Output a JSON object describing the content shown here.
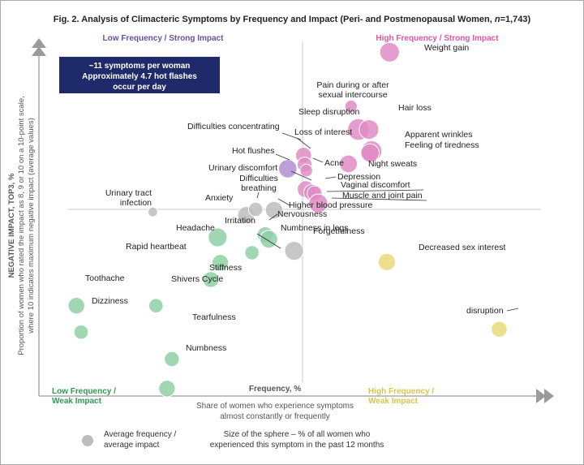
{
  "chart_data": {
    "type": "scatter",
    "title": "Fig. 2. Analysis of Climacteric Symptoms by Frequency and Impact (Peri- and Postmenopausal Women, n=1,743)",
    "title_parts": [
      "Fig. 2. Analysis of Climacteric Symptoms by Frequency and Impact (Peri- and Postmenopausal Women, ",
      "n",
      "=1,743)"
    ],
    "xlabel": "Frequency, %",
    "xlabel_sub": [
      "Share of women who experience symptoms",
      "almost constantly or frequently"
    ],
    "ylabel": "NEGATIVE IMPACT, TOP3, %",
    "ylabel_sub": [
      "Proportion of women who rated the impact as 8, 9 or 10 on a 10-point scale,",
      "where 10 indicates maximum negative impact (average values)"
    ],
    "xlim": [
      0,
      100
    ],
    "ylim": [
      0,
      100
    ],
    "center": [
      50,
      50
    ],
    "quadrants": {
      "top_left": "Low Frequency / Strong Impact",
      "top_right": "High Frequency / Strong Impact",
      "bottom_left": [
        "Low Frequency /",
        "Weak Impact"
      ],
      "bottom_right": [
        "High Frequency /",
        "Weak Impact"
      ]
    },
    "callout": [
      "~11 symptoms per woman",
      "Approximately 4.7 hot flashes",
      "occur per day"
    ],
    "legend": {
      "average": [
        "Average frequency /",
        "average impact"
      ],
      "size": [
        "Size of the sphere – % of all women who",
        "experienced this symptom in the past 12 months"
      ]
    },
    "colors": {
      "pink": "#e08cc4",
      "purple": "#b08fd0",
      "gray": "#bdbdbd",
      "green": "#8fd0a6",
      "yellow": "#e7db7a",
      "axis": "#aaaaaa",
      "title": "#222222",
      "pink_text": "#e0559f",
      "purple_text": "#6a4fa0",
      "green_text": "#2e9b4e",
      "yellow_text": "#d6c64a",
      "callout_bg": "#1f2a6b"
    },
    "series": [
      {
        "name": "Weight gain",
        "x": 66.5,
        "y": 92.1,
        "size": 3.8,
        "color": "pink"
      },
      {
        "name": "Pain during or after sexual intercourse",
        "x": 59.2,
        "y": 77.6,
        "size": 1.5,
        "color": "pink"
      },
      {
        "name": "Sleep disruption",
        "x": 60.6,
        "y": 71.4,
        "size": 4.6,
        "color": "pink"
      },
      {
        "name": "Hair loss",
        "x": 62.6,
        "y": 71.4,
        "size": 3.8,
        "color": "pink"
      },
      {
        "name": "Apparent wrinkles",
        "x": 63.1,
        "y": 65.6,
        "size": 4.2,
        "color": "pink"
      },
      {
        "name": "Feeling of tiredness",
        "x": 62.8,
        "y": 65.1,
        "size": 3.3,
        "color": "pink"
      },
      {
        "name": "Night sweats",
        "x": 58.7,
        "y": 62.2,
        "size": 3.1,
        "color": "pink"
      },
      {
        "name": "Loss of interest",
        "x": 50.2,
        "y": 64.5,
        "size": 2.5,
        "color": "pink"
      },
      {
        "name": "Difficulties concentrating",
        "x": 50.4,
        "y": 62.0,
        "size": 2.2,
        "color": "pink"
      },
      {
        "name": "Hot flushes",
        "x": 47.2,
        "y": 60.9,
        "size": 3.3,
        "color": "purple"
      },
      {
        "name": "Acne",
        "x": 50.7,
        "y": 60.4,
        "size": 1.6,
        "color": "pink"
      },
      {
        "name": "Urinary discomfort",
        "x": 50.6,
        "y": 55.4,
        "size": 2.8,
        "color": "pink"
      },
      {
        "name": "Depression",
        "x": 51.8,
        "y": 54.5,
        "size": 2.7,
        "color": "pink"
      },
      {
        "name": "Vaginal discomfort",
        "x": 52.3,
        "y": 54.3,
        "size": 2.2,
        "color": "pink"
      },
      {
        "name": "Muscle and joint pain",
        "x": 53.0,
        "y": 51.6,
        "size": 3.5,
        "color": "pink"
      },
      {
        "name": "Urinary tract infection",
        "x": 21.6,
        "y": 49.3,
        "size": 0.9,
        "color": "gray"
      },
      {
        "name": "Anxiety",
        "x": 39.3,
        "y": 48.5,
        "size": 2.8,
        "color": "gray"
      },
      {
        "name": "Difficulties breathing",
        "x": 41.1,
        "y": 50.0,
        "size": 2.0,
        "color": "gray"
      },
      {
        "name": "Higher blood pressure",
        "x": 44.6,
        "y": 49.8,
        "size": 3.0,
        "color": "gray"
      },
      {
        "name": "Headache",
        "x": 33.9,
        "y": 42.5,
        "size": 3.5,
        "color": "green"
      },
      {
        "name": "Irritation",
        "x": 42.9,
        "y": 43.2,
        "size": 2.5,
        "color": "green"
      },
      {
        "name": "Nervousness",
        "x": 43.6,
        "y": 42.0,
        "size": 3.1,
        "color": "green"
      },
      {
        "name": "Rapid heartbeat",
        "x": 34.4,
        "y": 35.7,
        "size": 2.7,
        "color": "green"
      },
      {
        "name": "Numbness in legs",
        "x": 40.4,
        "y": 38.4,
        "size": 2.0,
        "color": "green"
      },
      {
        "name": "Forgetfulness",
        "x": 48.4,
        "y": 38.9,
        "size": 3.5,
        "color": "gray"
      },
      {
        "name": "Stiffness",
        "x": 32.6,
        "y": 31.2,
        "size": 2.5,
        "color": "green"
      },
      {
        "name": "Decreased sex interest",
        "x": 66.0,
        "y": 35.9,
        "size": 2.9,
        "color": "yellow"
      },
      {
        "name": "Toothache",
        "x": 7.1,
        "y": 24.2,
        "size": 2.7,
        "color": "green"
      },
      {
        "name": "Shivers Cycle",
        "x": 22.2,
        "y": 24.2,
        "size": 2.0,
        "color": "green"
      },
      {
        "name": "Dizziness",
        "x": 8.0,
        "y": 17.1,
        "size": 2.0,
        "color": "green"
      },
      {
        "name": "Tearfulness",
        "x": 25.2,
        "y": 9.9,
        "size": 2.2,
        "color": "green"
      },
      {
        "name": "disruption",
        "x": 87.3,
        "y": 17.9,
        "size": 2.5,
        "color": "yellow"
      },
      {
        "name": "Numbness",
        "x": 24.3,
        "y": 2.0,
        "size": 2.7,
        "color": "green"
      }
    ],
    "labels": [
      {
        "point": "Weight gain",
        "text": [
          "Weight gain"
        ]
      },
      {
        "point": "Pain during or after sexual intercourse",
        "text": [
          "Pain during or after",
          "sexual intercourse"
        ]
      },
      {
        "point": "Sleep disruption",
        "text": [
          "Sleep disruption"
        ]
      },
      {
        "point": "Hair loss",
        "text": [
          "Hair loss"
        ]
      },
      {
        "point": "Apparent wrinkles",
        "text": [
          "Apparent wrinkles"
        ]
      },
      {
        "point": "Feeling of tiredness",
        "text": [
          "Feeling of tiredness"
        ]
      },
      {
        "point": "Night sweats",
        "text": [
          "Night sweats"
        ]
      },
      {
        "point": "Difficulties concentrating",
        "text": [
          "Difficulties concentrating"
        ]
      },
      {
        "point": "Loss of interest",
        "text": [
          "Loss of interest"
        ]
      },
      {
        "point": "Hot flushes",
        "text": [
          "Hot flushes"
        ]
      },
      {
        "point": "Acne",
        "text": [
          "Acne"
        ]
      },
      {
        "point": "Urinary discomfort",
        "text": [
          "Urinary discomfort"
        ]
      },
      {
        "point": "Depression",
        "text": [
          "Depression"
        ]
      },
      {
        "point": "Vaginal discomfort",
        "text": [
          "Vaginal discomfort"
        ]
      },
      {
        "point": "Muscle and joint pain",
        "text": [
          "Muscle and joint pain"
        ]
      },
      {
        "point": "Higher blood pressure",
        "text": [
          "Higher blood pressure"
        ]
      },
      {
        "point": "Urinary tract infection",
        "text": [
          "Urinary tract",
          "infection"
        ]
      },
      {
        "point": "Anxiety",
        "text": [
          "Anxiety"
        ]
      },
      {
        "point": "Difficulties breathing",
        "text": [
          "Difficulties",
          "breathing"
        ]
      },
      {
        "point": "Nervousness",
        "text": [
          "Nervousness"
        ]
      },
      {
        "point": "Irritation",
        "text": [
          "Irritation"
        ]
      },
      {
        "point": "Headache",
        "text": [
          "Headache"
        ]
      },
      {
        "point": "Forgetfulness",
        "text": [
          "Forgetfulness"
        ]
      },
      {
        "point": "Rapid heartbeat",
        "text": [
          "Rapid heartbeat"
        ]
      },
      {
        "point": "Numbness in legs",
        "text": [
          "Numbness in legs"
        ]
      },
      {
        "point": "Stiffness",
        "text": [
          "Stiffness"
        ]
      },
      {
        "point": "Decreased sex interest",
        "text": [
          "Decreased sex interest"
        ]
      },
      {
        "point": "Toothache",
        "text": [
          "Toothache"
        ]
      },
      {
        "point": "Shivers Cycle",
        "text": [
          "Shivers Cycle"
        ]
      },
      {
        "point": "Dizziness",
        "text": [
          "Dizziness"
        ]
      },
      {
        "point": "disruption",
        "text": [
          "disruption"
        ]
      },
      {
        "point": "Tearfulness",
        "text": [
          "Tearfulness"
        ]
      },
      {
        "point": "Numbness",
        "text": [
          "Numbness"
        ]
      }
    ]
  }
}
